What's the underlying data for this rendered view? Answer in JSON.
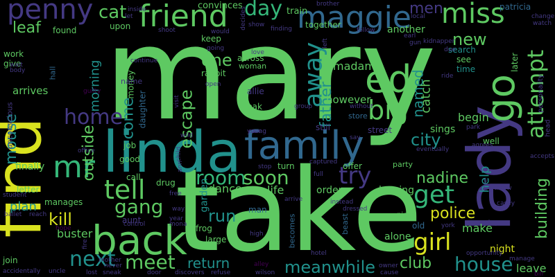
{
  "background": "#000000",
  "palette": {
    "yellow": "#d9e21f",
    "lime": "#a5da32",
    "green": "#5ec962",
    "teal": "#35b779",
    "sea": "#21918c",
    "blue": "#31688e",
    "indigo": "#443983",
    "purple": "#440154"
  },
  "words": [
    {
      "text": "mary",
      "color": "green"
    },
    {
      "text": "take",
      "color": "green"
    },
    {
      "text": "find",
      "color": "yellow"
    },
    {
      "text": "linda",
      "color": "sea"
    },
    {
      "text": "lady",
      "color": "indigo"
    },
    {
      "text": "family",
      "color": "blue"
    },
    {
      "text": "back",
      "color": "green"
    },
    {
      "text": "friend",
      "color": "green"
    },
    {
      "text": "maggie",
      "color": "blue"
    },
    {
      "text": "penny",
      "color": "indigo"
    },
    {
      "text": "ed",
      "color": "green"
    },
    {
      "text": "miss",
      "color": "green"
    },
    {
      "text": "day",
      "color": "teal"
    },
    {
      "text": "cat",
      "color": "green"
    },
    {
      "text": "men",
      "color": "indigo"
    },
    {
      "text": "go",
      "color": "green"
    },
    {
      "text": "away",
      "color": "sea"
    },
    {
      "text": "big",
      "color": "green"
    },
    {
      "text": "attempt",
      "color": "green"
    },
    {
      "text": "home",
      "color": "indigo"
    },
    {
      "text": "mr",
      "color": "teal"
    },
    {
      "text": "tell",
      "color": "green"
    },
    {
      "text": "gang",
      "color": "green"
    },
    {
      "text": "room",
      "color": "teal"
    },
    {
      "text": "soon",
      "color": "green"
    },
    {
      "text": "try",
      "color": "indigo"
    },
    {
      "text": "get",
      "color": "teal"
    },
    {
      "text": "girl",
      "color": "yellow"
    },
    {
      "text": "nadine",
      "color": "green"
    },
    {
      "text": "police",
      "color": "yellow"
    },
    {
      "text": "meet",
      "color": "green"
    },
    {
      "text": "next",
      "color": "sea"
    },
    {
      "text": "house",
      "color": "sea"
    },
    {
      "text": "club",
      "color": "green"
    },
    {
      "text": "return",
      "color": "sea"
    },
    {
      "text": "meanwhile",
      "color": "sea"
    },
    {
      "text": "kill",
      "color": "yellow"
    },
    {
      "text": "run",
      "color": "sea"
    },
    {
      "text": "escape",
      "color": "green"
    },
    {
      "text": "mouse",
      "color": "sea"
    },
    {
      "text": "outside",
      "color": "green"
    },
    {
      "text": "father",
      "color": "sea"
    },
    {
      "text": "named",
      "color": "sea"
    },
    {
      "text": "building",
      "color": "green"
    },
    {
      "text": "leaf",
      "color": "green"
    },
    {
      "text": "new",
      "color": "green"
    },
    {
      "text": "one",
      "color": "green"
    },
    {
      "text": "come",
      "color": "sea"
    },
    {
      "text": "morning",
      "color": "sea"
    },
    {
      "text": "help",
      "color": "sea"
    },
    {
      "text": "city",
      "color": "sea"
    },
    {
      "text": "catch",
      "color": "green"
    },
    {
      "text": "however",
      "color": "green"
    },
    {
      "text": "madame",
      "color": "green"
    },
    {
      "text": "begin",
      "color": "green"
    },
    {
      "text": "arrives",
      "color": "green"
    },
    {
      "text": "make",
      "color": "green"
    },
    {
      "text": "night",
      "color": "yellow"
    },
    {
      "text": "leave",
      "color": "green"
    },
    {
      "text": "life",
      "color": "green"
    },
    {
      "text": "dance",
      "color": "green"
    },
    {
      "text": "plan",
      "color": "sea"
    },
    {
      "text": "buster",
      "color": "green"
    },
    {
      "text": "finally",
      "color": "green"
    },
    {
      "text": "order",
      "color": "green"
    },
    {
      "text": "alone",
      "color": "green"
    },
    {
      "text": "leaving",
      "color": "green"
    },
    {
      "text": "sings",
      "color": "green"
    },
    {
      "text": "garden",
      "color": "sea"
    },
    {
      "text": "money",
      "color": "green"
    },
    {
      "text": "daughter",
      "color": "blue"
    },
    {
      "text": "train",
      "color": "green"
    },
    {
      "text": "patricia",
      "color": "blue"
    },
    {
      "text": "convinces",
      "color": "green"
    },
    {
      "text": "another",
      "color": "green"
    },
    {
      "text": "together",
      "color": "green"
    },
    {
      "text": "found",
      "color": "green"
    },
    {
      "text": "upon",
      "color": "green"
    },
    {
      "text": "keep",
      "color": "green"
    },
    {
      "text": "search",
      "color": "sea"
    },
    {
      "text": "see",
      "color": "green"
    },
    {
      "text": "time",
      "color": "sea"
    },
    {
      "text": "later",
      "color": "green"
    },
    {
      "text": "rabbit",
      "color": "green"
    },
    {
      "text": "across",
      "color": "green"
    },
    {
      "text": "woman",
      "color": "green"
    },
    {
      "text": "break",
      "color": "green"
    },
    {
      "text": "allie",
      "color": "indigo"
    },
    {
      "text": "still",
      "color": "indigo"
    },
    {
      "text": "store",
      "color": "blue"
    },
    {
      "text": "street",
      "color": "indigo"
    },
    {
      "text": "well",
      "color": "green"
    },
    {
      "text": "job",
      "color": "green"
    },
    {
      "text": "good",
      "color": "green"
    },
    {
      "text": "call",
      "color": "green"
    },
    {
      "text": "drug",
      "color": "green"
    },
    {
      "text": "offer",
      "color": "green"
    },
    {
      "text": "party",
      "color": "green"
    },
    {
      "text": "turn",
      "color": "green"
    },
    {
      "text": "letter",
      "color": "green"
    },
    {
      "text": "manages",
      "color": "green"
    },
    {
      "text": "aunt",
      "color": "indigo"
    },
    {
      "text": "frog",
      "color": "green"
    },
    {
      "text": "large",
      "color": "green"
    },
    {
      "text": "man",
      "color": "blue"
    },
    {
      "text": "becomes",
      "color": "blue"
    },
    {
      "text": "beast",
      "color": "blue"
    },
    {
      "text": "old",
      "color": "blue"
    },
    {
      "text": "piece",
      "color": "green"
    },
    {
      "text": "join",
      "color": "green"
    },
    {
      "text": "work",
      "color": "green"
    },
    {
      "text": "give",
      "color": "green"
    },
    {
      "text": "hall",
      "color": "blue"
    },
    {
      "text": "unconscious",
      "color": "indigo"
    },
    {
      "text": "name",
      "color": "indigo"
    },
    {
      "text": "shoot",
      "color": "indigo"
    },
    {
      "text": "would",
      "color": "indigo"
    },
    {
      "text": "show",
      "color": "indigo"
    },
    {
      "text": "finding",
      "color": "indigo"
    },
    {
      "text": "follow",
      "color": "indigo"
    },
    {
      "text": "earl",
      "color": "indigo"
    },
    {
      "text": "gun",
      "color": "indigo"
    },
    {
      "text": "local",
      "color": "indigo"
    },
    {
      "text": "brother",
      "color": "indigo"
    },
    {
      "text": "decides",
      "color": "indigo"
    },
    {
      "text": "inside",
      "color": "indigo"
    },
    {
      "text": "let",
      "color": "indigo"
    },
    {
      "text": "kidnapper",
      "color": "indigo"
    },
    {
      "text": "due",
      "color": "indigo"
    },
    {
      "text": "watch",
      "color": "indigo"
    },
    {
      "text": "change",
      "color": "indigo"
    },
    {
      "text": "personality",
      "color": "indigo"
    },
    {
      "text": "wait",
      "color": "indigo"
    },
    {
      "text": "body",
      "color": "indigo"
    },
    {
      "text": "continue",
      "color": "indigo"
    },
    {
      "text": "guilty",
      "color": "purple"
    },
    {
      "text": "visit",
      "color": "indigo"
    },
    {
      "text": "open",
      "color": "indigo"
    },
    {
      "text": "going",
      "color": "indigo"
    },
    {
      "text": "love",
      "color": "indigo"
    },
    {
      "text": "left",
      "color": "indigo"
    },
    {
      "text": "group",
      "color": "indigo"
    },
    {
      "text": "without",
      "color": "indigo"
    },
    {
      "text": "ride",
      "color": "indigo"
    },
    {
      "text": "park",
      "color": "indigo"
    },
    {
      "text": "agrees",
      "color": "indigo"
    },
    {
      "text": "office",
      "color": "indigo"
    },
    {
      "text": "wild",
      "color": "indigo"
    },
    {
      "text": "child",
      "color": "indigo"
    },
    {
      "text": "young",
      "color": "indigo"
    },
    {
      "text": "care",
      "color": "indigo"
    },
    {
      "text": "say",
      "color": "indigo"
    },
    {
      "text": "eventually",
      "color": "indigo"
    },
    {
      "text": "accepts",
      "color": "indigo"
    },
    {
      "text": "head",
      "color": "indigo"
    },
    {
      "text": "student",
      "color": "indigo"
    },
    {
      "text": "ballet",
      "color": "indigo"
    },
    {
      "text": "reach",
      "color": "indigo"
    },
    {
      "text": "free",
      "color": "indigo"
    },
    {
      "text": "way",
      "color": "indigo"
    },
    {
      "text": "year",
      "color": "indigo"
    },
    {
      "text": "mona",
      "color": "indigo"
    },
    {
      "text": "ann",
      "color": "indigo"
    },
    {
      "text": "stop",
      "color": "indigo"
    },
    {
      "text": "full",
      "color": "indigo"
    },
    {
      "text": "captured",
      "color": "indigo"
    },
    {
      "text": "arrive",
      "color": "indigo"
    },
    {
      "text": "instead",
      "color": "indigo"
    },
    {
      "text": "dressed",
      "color": "indigo"
    },
    {
      "text": "tree",
      "color": "indigo"
    },
    {
      "text": "throw",
      "color": "indigo"
    },
    {
      "text": "casey",
      "color": "indigo"
    },
    {
      "text": "seeing",
      "color": "indigo"
    },
    {
      "text": "york",
      "color": "indigo"
    },
    {
      "text": "control",
      "color": "indigo"
    },
    {
      "text": "high",
      "color": "indigo"
    },
    {
      "text": "hope",
      "color": "purple"
    },
    {
      "text": "fire",
      "color": "indigo"
    },
    {
      "text": "mother",
      "color": "indigo"
    },
    {
      "text": "never",
      "color": "indigo"
    },
    {
      "text": "sneak",
      "color": "indigo"
    },
    {
      "text": "hotel",
      "color": "indigo"
    },
    {
      "text": "owner",
      "color": "indigo"
    },
    {
      "text": "opportunity",
      "color": "indigo"
    },
    {
      "text": "manage",
      "color": "indigo"
    },
    {
      "text": "accidentally",
      "color": "indigo"
    },
    {
      "text": "uncle",
      "color": "indigo"
    },
    {
      "text": "lost",
      "color": "indigo"
    },
    {
      "text": "door",
      "color": "indigo"
    },
    {
      "text": "discovers",
      "color": "indigo"
    },
    {
      "text": "refuse",
      "color": "indigo"
    },
    {
      "text": "alley",
      "color": "purple"
    },
    {
      "text": "wilson",
      "color": "indigo"
    },
    {
      "text": "cause",
      "color": "indigo"
    },
    {
      "text": "bill",
      "color": "purple"
    }
  ]
}
